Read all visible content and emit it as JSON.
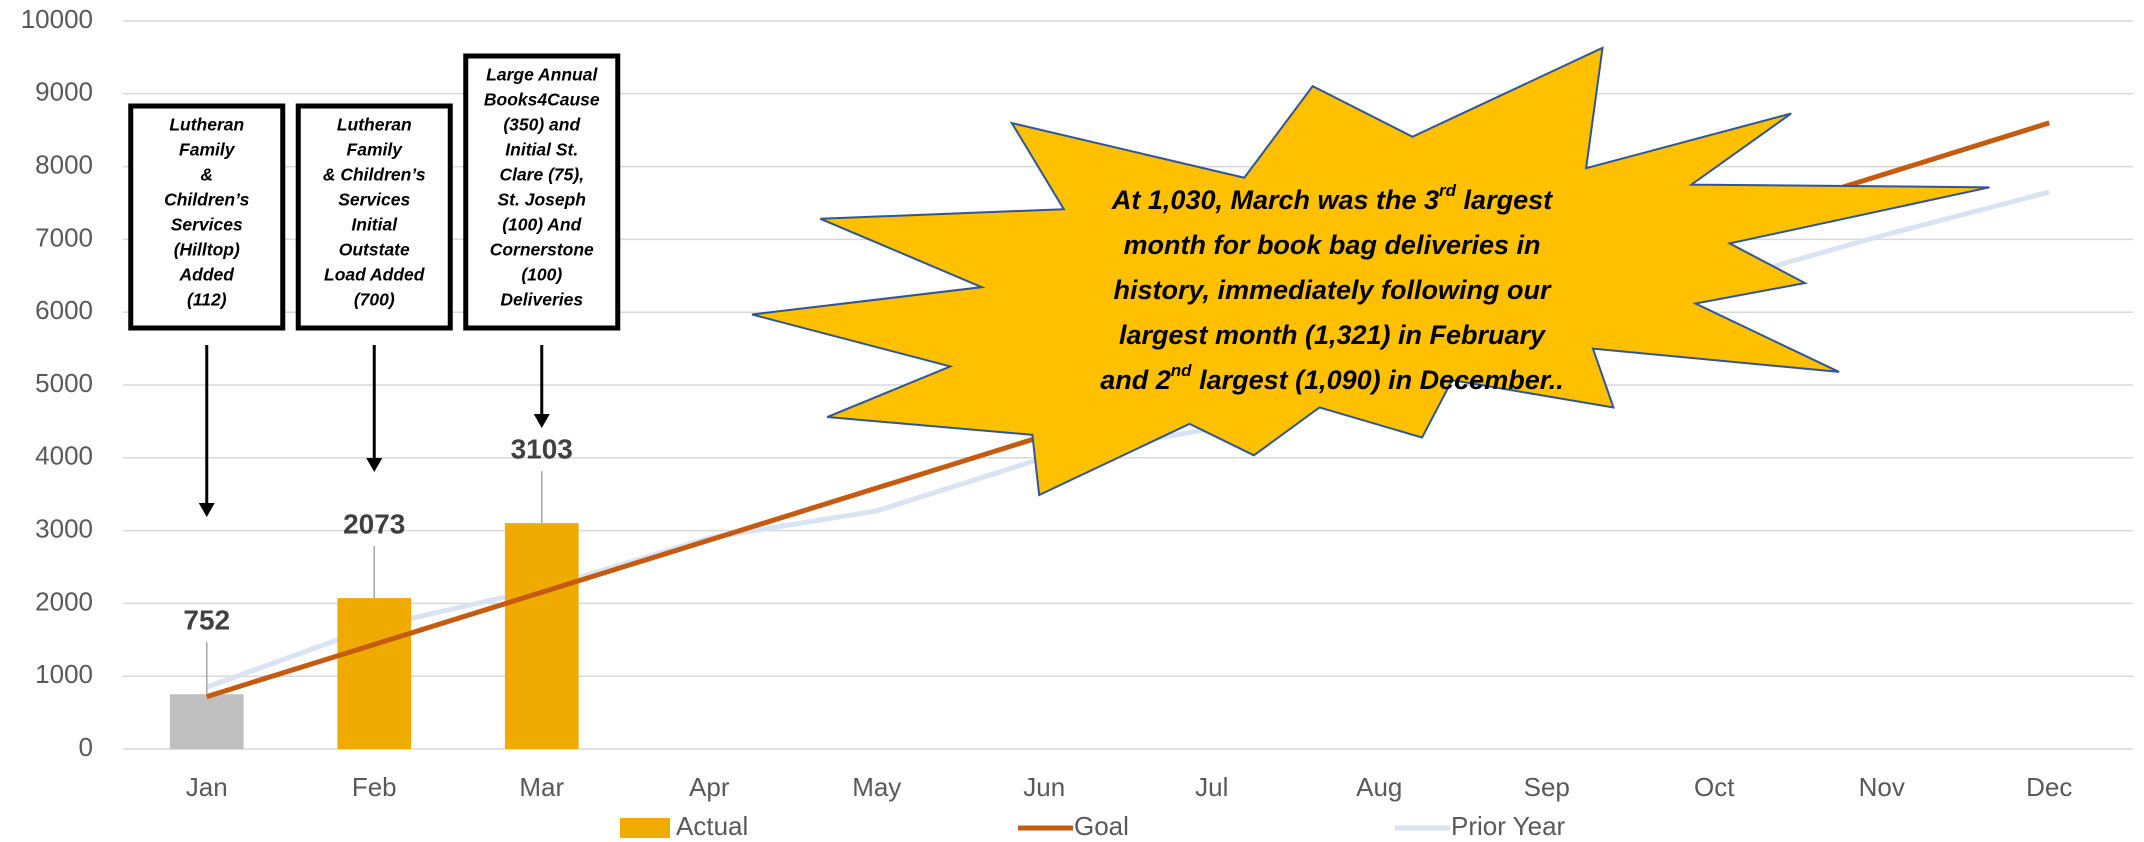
{
  "chart_data": {
    "type": "bar",
    "categories": [
      "Jan",
      "Feb",
      "Mar",
      "Apr",
      "May",
      "Jun",
      "Jul",
      "Aug",
      "Sep",
      "Oct",
      "Nov",
      "Dec"
    ],
    "series": [
      {
        "name": "Actual",
        "type": "bar",
        "color": "#f0ab00",
        "colors": [
          "#bfbfbf",
          "#f0ab00",
          "#f0ab00",
          null,
          null,
          null,
          null,
          null,
          null,
          null,
          null,
          null
        ],
        "values": [
          752,
          2073,
          3103,
          null,
          null,
          null,
          null,
          null,
          null,
          null,
          null,
          null
        ]
      },
      {
        "name": "Goal",
        "type": "line",
        "color": "#c55a11",
        "values": [
          720,
          1436,
          2153,
          2869,
          3585,
          4302,
          5018,
          5734,
          6451,
          7167,
          7884,
          8600
        ]
      },
      {
        "name": "Prior Year",
        "type": "line",
        "color": "#dae3f3",
        "values": [
          850,
          1680,
          2200,
          2900,
          3270,
          4000,
          4400,
          5000,
          5700,
          6400,
          7050,
          7650
        ]
      }
    ],
    "ylim": [
      0,
      10000
    ],
    "yticks": [
      0,
      1000,
      2000,
      3000,
      4000,
      5000,
      6000,
      7000,
      8000,
      9000,
      10000
    ],
    "grid": true,
    "legend": "bottom",
    "annotations": [
      {
        "category": 0,
        "lines": [
          "Lutheran",
          "Family",
          "&",
          "Children’s",
          "Services",
          "(Hilltop)",
          "Added",
          "(112)"
        ]
      },
      {
        "category": 1,
        "lines": [
          "Lutheran",
          "Family",
          "& Children’s",
          "Services",
          "Initial",
          "Outstate",
          "Load Added",
          "(700)"
        ]
      },
      {
        "category": 2,
        "lines": [
          "Large Annual",
          "Books4Cause",
          "(350) and",
          "Initial St.",
          "Clare (75),",
          "St. Joseph",
          "(100) And",
          "Cornerstone",
          "(100)",
          "Deliveries"
        ]
      }
    ],
    "callout": [
      [
        "At 1,030, March was the 3",
        "rd",
        " largest"
      ],
      [
        "month for book bag deliveries in"
      ],
      [
        "history, immediately following our"
      ],
      [
        "largest month (1,321) in February"
      ],
      [
        "and 2",
        "nd",
        " largest (1,090) in December.."
      ]
    ]
  }
}
